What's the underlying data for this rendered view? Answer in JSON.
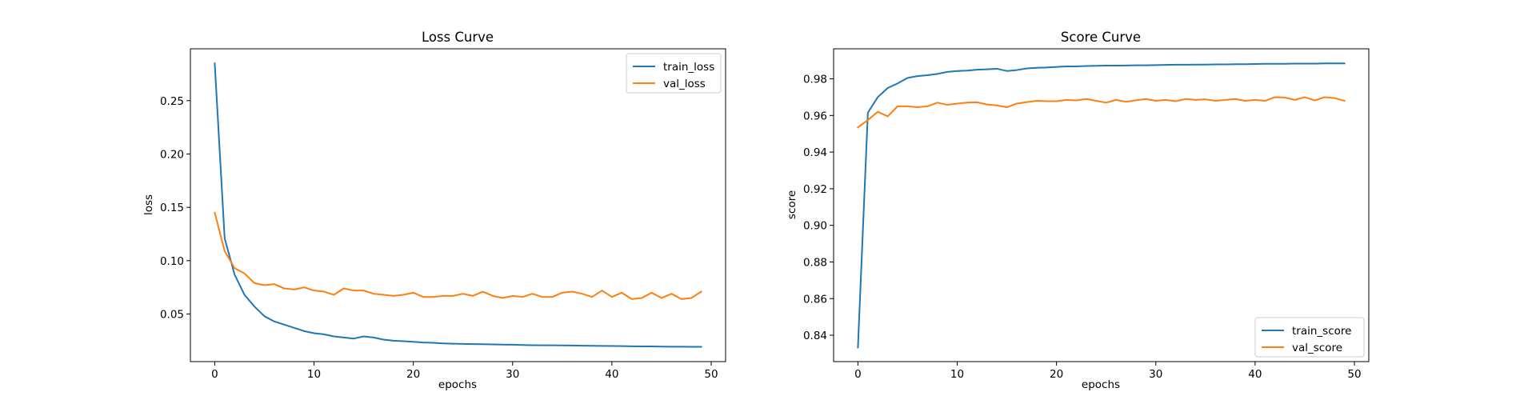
{
  "chart_data": [
    {
      "type": "line",
      "title": "Loss Curve",
      "xlabel": "epochs",
      "ylabel": "loss",
      "xlim": [
        -2.45,
        51.45
      ],
      "ylim": [
        0.0054,
        0.2986
      ],
      "xticks": [
        0,
        10,
        20,
        30,
        40,
        50
      ],
      "yticks": [
        0.05,
        0.1,
        0.15,
        0.2,
        0.25
      ],
      "ytick_labels": [
        "0.05",
        "0.10",
        "0.15",
        "0.20",
        "0.25"
      ],
      "grid": false,
      "legend_position": "upper right",
      "x": [
        0,
        1,
        2,
        3,
        4,
        5,
        6,
        7,
        8,
        9,
        10,
        11,
        12,
        13,
        14,
        15,
        16,
        17,
        18,
        19,
        20,
        21,
        22,
        23,
        24,
        25,
        26,
        27,
        28,
        29,
        30,
        31,
        32,
        33,
        34,
        35,
        36,
        37,
        38,
        39,
        40,
        41,
        42,
        43,
        44,
        45,
        46,
        47,
        48,
        49
      ],
      "series": [
        {
          "name": "train_loss",
          "color": "#1f77b4",
          "values": [
            0.285,
            0.121,
            0.087,
            0.068,
            0.057,
            0.048,
            0.043,
            0.04,
            0.037,
            0.034,
            0.032,
            0.031,
            0.029,
            0.028,
            0.027,
            0.029,
            0.028,
            0.026,
            0.025,
            0.0245,
            0.024,
            0.0233,
            0.023,
            0.0225,
            0.0222,
            0.022,
            0.0218,
            0.0217,
            0.0215,
            0.0213,
            0.0212,
            0.021,
            0.0208,
            0.0207,
            0.0207,
            0.0206,
            0.0205,
            0.0203,
            0.0202,
            0.0201,
            0.02,
            0.0199,
            0.0197,
            0.0196,
            0.0196,
            0.0195,
            0.0194,
            0.0194,
            0.0193,
            0.0193
          ]
        },
        {
          "name": "val_loss",
          "color": "#ff7f0e",
          "values": [
            0.145,
            0.109,
            0.093,
            0.088,
            0.079,
            0.077,
            0.078,
            0.074,
            0.073,
            0.075,
            0.072,
            0.071,
            0.068,
            0.074,
            0.072,
            0.072,
            0.069,
            0.068,
            0.067,
            0.068,
            0.07,
            0.066,
            0.066,
            0.067,
            0.067,
            0.069,
            0.067,
            0.071,
            0.067,
            0.065,
            0.067,
            0.066,
            0.069,
            0.066,
            0.066,
            0.07,
            0.071,
            0.069,
            0.066,
            0.072,
            0.066,
            0.07,
            0.064,
            0.065,
            0.07,
            0.065,
            0.069,
            0.064,
            0.065,
            0.071
          ]
        }
      ]
    },
    {
      "type": "line",
      "title": "Score Curve",
      "xlabel": "epochs",
      "ylabel": "score",
      "xlim": [
        -2.45,
        51.45
      ],
      "ylim": [
        0.8256,
        0.9964
      ],
      "xticks": [
        0,
        10,
        20,
        30,
        40,
        50
      ],
      "yticks": [
        0.84,
        0.86,
        0.88,
        0.9,
        0.92,
        0.94,
        0.96,
        0.98
      ],
      "ytick_labels": [
        "0.84",
        "0.86",
        "0.88",
        "0.90",
        "0.92",
        "0.94",
        "0.96",
        "0.98"
      ],
      "grid": false,
      "legend_position": "lower right",
      "x": [
        0,
        1,
        2,
        3,
        4,
        5,
        6,
        7,
        8,
        9,
        10,
        11,
        12,
        13,
        14,
        15,
        16,
        17,
        18,
        19,
        20,
        21,
        22,
        23,
        24,
        25,
        26,
        27,
        28,
        29,
        30,
        31,
        32,
        33,
        34,
        35,
        36,
        37,
        38,
        39,
        40,
        41,
        42,
        43,
        44,
        45,
        46,
        47,
        48,
        49
      ],
      "series": [
        {
          "name": "train_score",
          "color": "#1f77b4",
          "values": [
            0.8333,
            0.9615,
            0.97,
            0.975,
            0.9775,
            0.9805,
            0.9815,
            0.982,
            0.9827,
            0.9838,
            0.9843,
            0.9845,
            0.985,
            0.9852,
            0.9855,
            0.9843,
            0.9848,
            0.9857,
            0.986,
            0.9862,
            0.9865,
            0.9868,
            0.9868,
            0.987,
            0.9871,
            0.9872,
            0.9872,
            0.9873,
            0.9874,
            0.9874,
            0.9875,
            0.9876,
            0.9877,
            0.9877,
            0.9878,
            0.9878,
            0.9879,
            0.9879,
            0.988,
            0.988,
            0.9881,
            0.9882,
            0.9882,
            0.9882,
            0.9883,
            0.9883,
            0.9883,
            0.9884,
            0.9884,
            0.9884
          ]
        },
        {
          "name": "val_score",
          "color": "#ff7f0e",
          "values": [
            0.9535,
            0.9575,
            0.962,
            0.9595,
            0.965,
            0.965,
            0.9645,
            0.965,
            0.967,
            0.9658,
            0.9665,
            0.967,
            0.9672,
            0.966,
            0.9655,
            0.9645,
            0.9665,
            0.9673,
            0.968,
            0.9678,
            0.9678,
            0.9685,
            0.9682,
            0.969,
            0.968,
            0.967,
            0.9685,
            0.9675,
            0.9683,
            0.969,
            0.968,
            0.9685,
            0.9678,
            0.969,
            0.9685,
            0.9688,
            0.968,
            0.9685,
            0.969,
            0.968,
            0.9685,
            0.968,
            0.97,
            0.9698,
            0.9685,
            0.97,
            0.9682,
            0.97,
            0.9695,
            0.968
          ]
        }
      ]
    }
  ]
}
